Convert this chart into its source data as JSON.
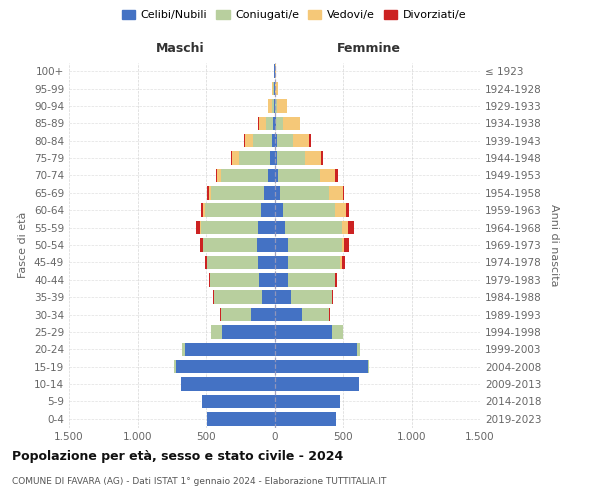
{
  "age_groups": [
    "0-4",
    "5-9",
    "10-14",
    "15-19",
    "20-24",
    "25-29",
    "30-34",
    "35-39",
    "40-44",
    "45-49",
    "50-54",
    "55-59",
    "60-64",
    "65-69",
    "70-74",
    "75-79",
    "80-84",
    "85-89",
    "90-94",
    "95-99",
    "100+"
  ],
  "birth_years": [
    "2019-2023",
    "2014-2018",
    "2009-2013",
    "2004-2008",
    "1999-2003",
    "1994-1998",
    "1989-1993",
    "1984-1988",
    "1979-1983",
    "1974-1978",
    "1969-1973",
    "1964-1968",
    "1959-1963",
    "1954-1958",
    "1949-1953",
    "1944-1948",
    "1939-1943",
    "1934-1938",
    "1929-1933",
    "1924-1928",
    "≤ 1923"
  ],
  "colors": {
    "celibi": "#4472c4",
    "coniugati": "#b8cf9e",
    "vedovi": "#f5c878",
    "divorziati": "#cc2222",
    "background": "#ffffff",
    "grid": "#cccccc"
  },
  "maschi": {
    "celibi": [
      490,
      530,
      680,
      720,
      650,
      380,
      170,
      90,
      110,
      120,
      130,
      120,
      100,
      75,
      50,
      30,
      20,
      10,
      5,
      3,
      2
    ],
    "coniugati": [
      0,
      0,
      0,
      10,
      25,
      80,
      220,
      350,
      360,
      370,
      390,
      420,
      410,
      390,
      340,
      230,
      135,
      55,
      15,
      5,
      0
    ],
    "vedovi": [
      0,
      0,
      0,
      0,
      0,
      0,
      0,
      0,
      1,
      2,
      3,
      5,
      10,
      15,
      30,
      50,
      60,
      50,
      30,
      8,
      0
    ],
    "divorziati": [
      0,
      0,
      0,
      0,
      0,
      2,
      5,
      8,
      10,
      18,
      20,
      25,
      18,
      10,
      10,
      8,
      5,
      3,
      0,
      0,
      0
    ]
  },
  "femmine": {
    "celibi": [
      450,
      480,
      620,
      680,
      600,
      420,
      200,
      120,
      100,
      100,
      100,
      80,
      60,
      40,
      25,
      20,
      15,
      8,
      5,
      2,
      3
    ],
    "coniugati": [
      0,
      0,
      0,
      10,
      25,
      80,
      200,
      300,
      340,
      380,
      390,
      410,
      380,
      360,
      310,
      200,
      120,
      55,
      15,
      3,
      0
    ],
    "vedovi": [
      0,
      0,
      0,
      0,
      0,
      0,
      0,
      2,
      5,
      15,
      20,
      50,
      80,
      100,
      110,
      120,
      120,
      120,
      70,
      20,
      5
    ],
    "divorziati": [
      0,
      0,
      0,
      0,
      0,
      2,
      5,
      8,
      10,
      20,
      35,
      40,
      25,
      10,
      15,
      12,
      10,
      5,
      0,
      0,
      0
    ]
  },
  "xlim": 1500,
  "xticks": [
    -1500,
    -1000,
    -500,
    0,
    500,
    1000,
    1500
  ],
  "xticklabels": [
    "1.500",
    "1.000",
    "500",
    "0",
    "500",
    "1.000",
    "1.500"
  ],
  "title": "Popolazione per età, sesso e stato civile - 2024",
  "subtitle": "COMUNE DI FAVARA (AG) - Dati ISTAT 1° gennaio 2024 - Elaborazione TUTTITALIA.IT",
  "ylabel_left": "Fasce di età",
  "ylabel_right": "Anni di nascita",
  "header_maschi": "Maschi",
  "header_femmine": "Femmine",
  "legend_labels": [
    "Celibi/Nubili",
    "Coniugati/e",
    "Vedovi/e",
    "Divorziati/e"
  ]
}
